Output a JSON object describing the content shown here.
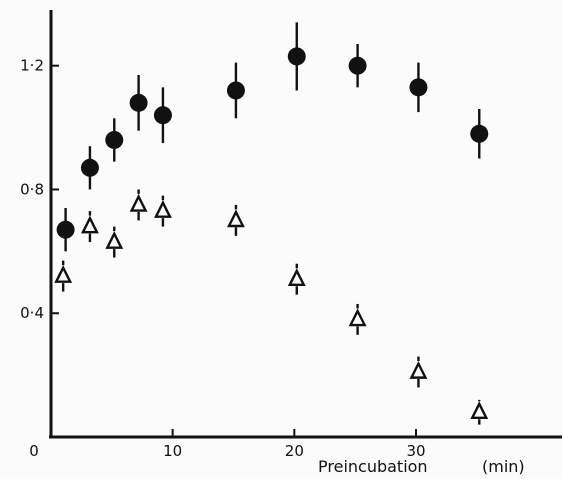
{
  "chart_data": {
    "type": "scatter",
    "title": "",
    "xlabel": "Preincubation",
    "xlabel_unit": "(min)",
    "ylabel": "",
    "xlim": [
      0,
      42
    ],
    "ylim": [
      0,
      1.38
    ],
    "x_ticks": [
      {
        "value": 0,
        "label": "0"
      },
      {
        "value": 10,
        "label": "10"
      },
      {
        "value": 20,
        "label": "20"
      },
      {
        "value": 30,
        "label": "30"
      }
    ],
    "y_ticks": [
      {
        "value": 0.4,
        "label": "0·4"
      },
      {
        "value": 0.8,
        "label": "0·8"
      },
      {
        "value": 1.2,
        "label": "1·2"
      }
    ],
    "grid": false,
    "legend": "none",
    "series": [
      {
        "marker": "filled-circle",
        "color": "#111111",
        "points": [
          {
            "x": 1.2,
            "y": 0.67,
            "err": 0.07
          },
          {
            "x": 3.2,
            "y": 0.87,
            "err": 0.07
          },
          {
            "x": 5.2,
            "y": 0.96,
            "err": 0.07
          },
          {
            "x": 7.2,
            "y": 1.08,
            "err": 0.09
          },
          {
            "x": 9.2,
            "y": 1.04,
            "err": 0.09
          },
          {
            "x": 15.2,
            "y": 1.12,
            "err": 0.09
          },
          {
            "x": 20.2,
            "y": 1.23,
            "err": 0.11
          },
          {
            "x": 25.2,
            "y": 1.2,
            "err": 0.07
          },
          {
            "x": 30.2,
            "y": 1.13,
            "err": 0.08
          },
          {
            "x": 35.2,
            "y": 0.98,
            "err": 0.08
          }
        ]
      },
      {
        "marker": "open-triangle",
        "color": "#111111",
        "points": [
          {
            "x": 1.0,
            "y": 0.52,
            "err": 0.05
          },
          {
            "x": 3.2,
            "y": 0.68,
            "err": 0.05
          },
          {
            "x": 5.2,
            "y": 0.63,
            "err": 0.05
          },
          {
            "x": 7.2,
            "y": 0.75,
            "err": 0.05
          },
          {
            "x": 9.2,
            "y": 0.73,
            "err": 0.05
          },
          {
            "x": 15.2,
            "y": 0.7,
            "err": 0.05
          },
          {
            "x": 20.2,
            "y": 0.51,
            "err": 0.05
          },
          {
            "x": 25.2,
            "y": 0.38,
            "err": 0.05
          },
          {
            "x": 30.2,
            "y": 0.21,
            "err": 0.05
          },
          {
            "x": 35.2,
            "y": 0.08,
            "err": 0.04
          }
        ]
      }
    ]
  }
}
